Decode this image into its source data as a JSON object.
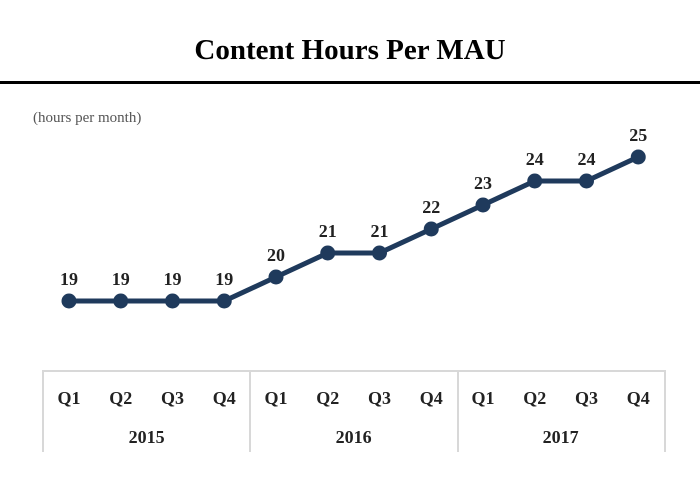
{
  "chart_data": {
    "type": "line",
    "title": "Content Hours Per MAU",
    "subtitle": "(hours per month)",
    "categories": [
      "Q1",
      "Q2",
      "Q3",
      "Q4",
      "Q1",
      "Q2",
      "Q3",
      "Q4",
      "Q1",
      "Q2",
      "Q3",
      "Q4"
    ],
    "groups": [
      "2015",
      "2016",
      "2017"
    ],
    "values": [
      19,
      19,
      19,
      19,
      20,
      21,
      21,
      22,
      23,
      24,
      24,
      25
    ],
    "xlabel": "",
    "ylabel": "",
    "grid": false,
    "colors": {
      "line": "#1f3a5c",
      "border": "#d8d8d8"
    }
  }
}
